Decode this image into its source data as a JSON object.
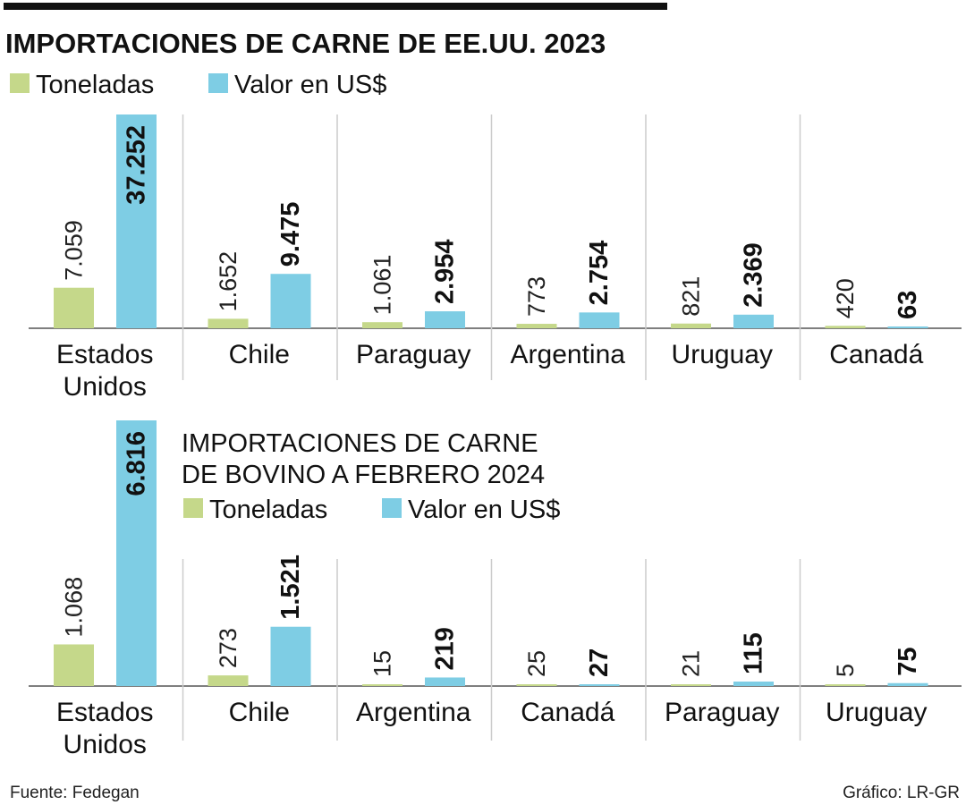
{
  "colors": {
    "toneladas": "#c5d88a",
    "valor": "#7ecde4"
  },
  "footer": {
    "source": "Fuente: Fedegan",
    "credit": "Gráfico: LR-GR"
  },
  "chart_data": [
    {
      "type": "bar",
      "title": "IMPORTACIONES DE CARNE DE EE.UU. 2023",
      "legend": [
        "Toneladas",
        "Valor en US$"
      ],
      "legend_position": "top-left",
      "categories": [
        "Estados Unidos",
        "Chile",
        "Paraguay",
        "Argentina",
        "Uruguay",
        "Canadá"
      ],
      "series": [
        {
          "name": "Toneladas",
          "values": [
            7059,
            1652,
            1061,
            773,
            821,
            420
          ],
          "labels": [
            "7.059",
            "1.652",
            "1.061",
            "773",
            "821",
            "420"
          ]
        },
        {
          "name": "Valor en US$",
          "values": [
            37252,
            9475,
            2954,
            2754,
            2369,
            63
          ],
          "labels": [
            "37.252",
            "9.475",
            "2.954",
            "2.754",
            "2.369",
            "63"
          ]
        }
      ],
      "grid": false
    },
    {
      "type": "bar",
      "title": "IMPORTACIONES DE CARNE DE BOVINO A FEBRERO 2024",
      "title_lines": [
        "IMPORTACIONES DE CARNE",
        "DE BOVINO A FEBRERO 2024"
      ],
      "legend": [
        "Toneladas",
        "Valor en US$"
      ],
      "legend_position": "top",
      "categories": [
        "Estados Unidos",
        "Chile",
        "Argentina",
        "Canadá",
        "Paraguay",
        "Uruguay"
      ],
      "series": [
        {
          "name": "Toneladas",
          "values": [
            1068,
            273,
            15,
            25,
            21,
            5
          ],
          "labels": [
            "1.068",
            "273",
            "15",
            "25",
            "21",
            "5"
          ]
        },
        {
          "name": "Valor en US$",
          "values": [
            6816,
            1521,
            219,
            27,
            115,
            75
          ],
          "labels": [
            "6.816",
            "1.521",
            "219",
            "27",
            "115",
            "75"
          ]
        }
      ],
      "grid": false
    }
  ]
}
